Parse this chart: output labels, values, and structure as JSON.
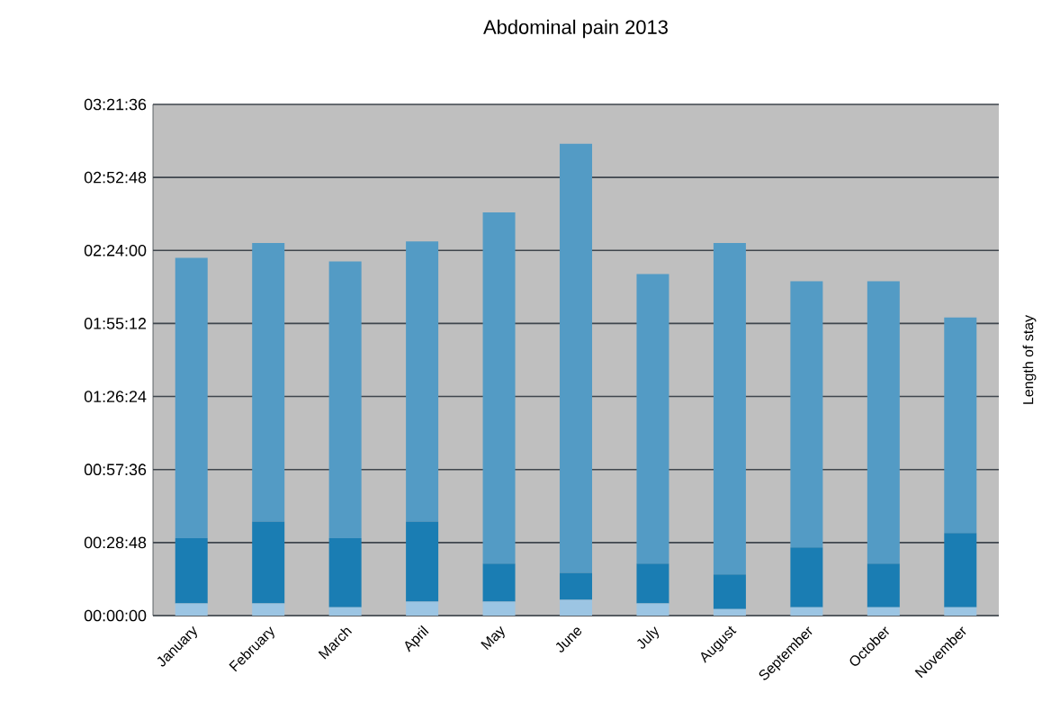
{
  "chart_data": {
    "type": "bar",
    "title": "Abdominal pain 2013",
    "annotations": [
      "Length of stay"
    ],
    "categories": [
      "January",
      "February",
      "March",
      "April",
      "May",
      "June",
      "July",
      "August",
      "September",
      "October",
      "November"
    ],
    "stacked": true,
    "grid": "y",
    "ylim": [
      0,
      201.6
    ],
    "yticks": [
      {
        "value": 0,
        "label": "00:00:00"
      },
      {
        "value": 28.8,
        "label": "00:28:48"
      },
      {
        "value": 57.6,
        "label": "00:57:36"
      },
      {
        "value": 86.4,
        "label": "01:26:24"
      },
      {
        "value": 115.2,
        "label": "01:55:12"
      },
      {
        "value": 144,
        "label": "02:24:00"
      },
      {
        "value": 172.8,
        "label": "02:52:48"
      },
      {
        "value": 201.6,
        "label": "03:21:36"
      }
    ],
    "series": [
      {
        "color": "#9cc5e3",
        "values": [
          4.8,
          4.8,
          3.3,
          5.5,
          5.5,
          6.2,
          4.8,
          2.6,
          3.3,
          3.3,
          3.3
        ]
      },
      {
        "color": "#1a7db3",
        "values": [
          25.7,
          32.3,
          27.2,
          31.6,
          15.0,
          10.7,
          15.7,
          13.6,
          23.6,
          17.2,
          29.3
        ]
      },
      {
        "color": "#539bc5",
        "values": [
          110.6,
          109.8,
          109.2,
          110.5,
          138.5,
          169.2,
          114.2,
          130.7,
          105.0,
          111.4,
          85.0
        ]
      }
    ]
  }
}
